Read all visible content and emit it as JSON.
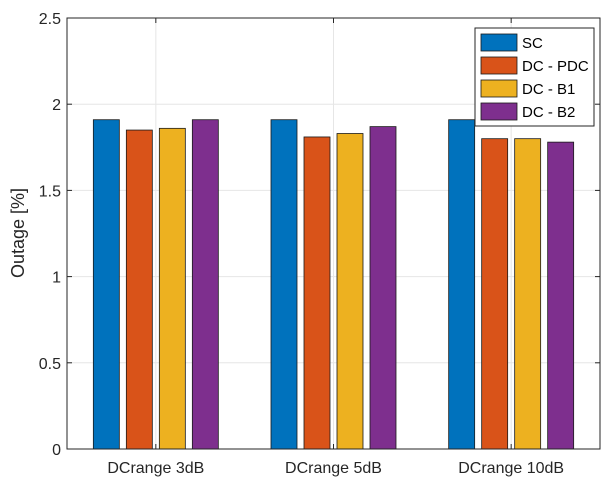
{
  "chart_data": {
    "type": "bar",
    "categories": [
      "DCrange 3dB",
      "DCrange 5dB",
      "DCrange 10dB"
    ],
    "series": [
      {
        "name": "SC",
        "color": "#0072BD",
        "values": [
          1.91,
          1.91,
          1.91
        ]
      },
      {
        "name": "DC - PDC",
        "color": "#D95319",
        "values": [
          1.85,
          1.81,
          1.8
        ]
      },
      {
        "name": "DC - B1",
        "color": "#EDB120",
        "values": [
          1.86,
          1.83,
          1.8
        ]
      },
      {
        "name": "DC - B2",
        "color": "#7E2F8E",
        "values": [
          1.91,
          1.87,
          1.78
        ]
      }
    ],
    "ylabel": "Outage [%]",
    "xlabel": "",
    "ylim": [
      0,
      2.5
    ],
    "yticks": [
      "0",
      "0.5",
      "1",
      "1.5",
      "2",
      "2.5"
    ],
    "grid": true,
    "legend_position": "top-right"
  }
}
